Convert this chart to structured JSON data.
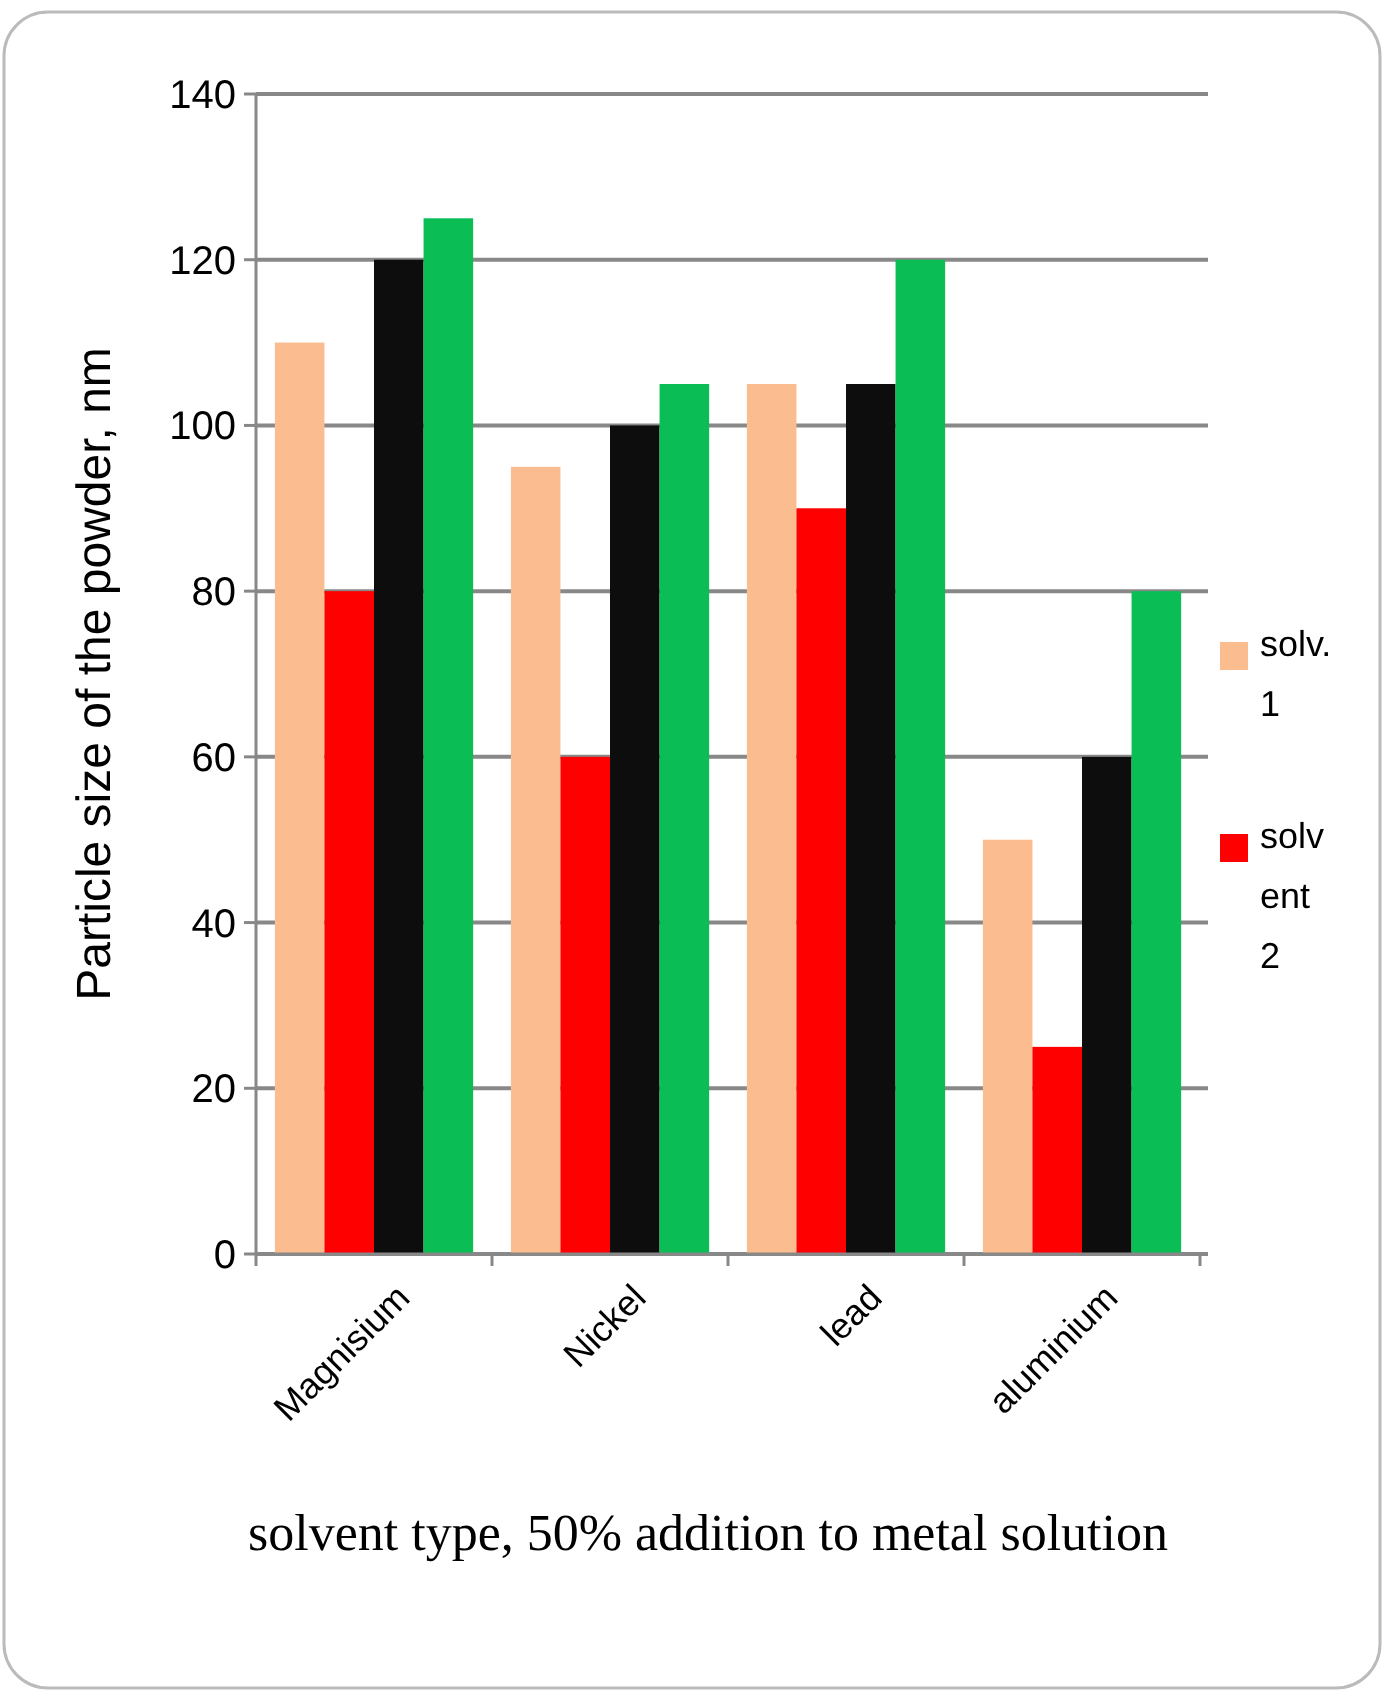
{
  "chart_data": {
    "type": "bar",
    "xlabel": "solvent type, 50% addition to metal solution",
    "ylabel": "Particle size of the powder, nm",
    "categories": [
      "Magnisium",
      "Nickel",
      "lead",
      "aluminium"
    ],
    "series": [
      {
        "name": "solv. 1",
        "color": "#fbbc8f",
        "values": [
          110,
          95,
          105,
          50
        ]
      },
      {
        "name": "solvent 2",
        "color": "#ff0000",
        "values": [
          80,
          60,
          90,
          25
        ]
      },
      {
        "color": "#0d0d0d",
        "values": [
          120,
          100,
          105,
          60
        ]
      },
      {
        "color": "#0bbd55",
        "values": [
          125,
          105,
          120,
          80
        ]
      }
    ],
    "ylim": [
      0,
      140
    ],
    "yticks": [
      0,
      20,
      40,
      60,
      80,
      100,
      120,
      140
    ],
    "grid": "y",
    "legend": "right"
  }
}
